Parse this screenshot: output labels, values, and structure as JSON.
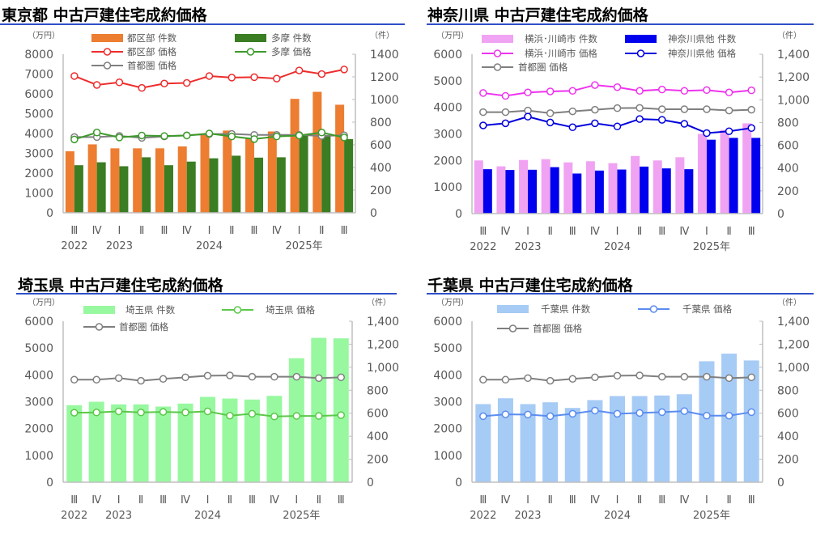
{
  "categories": [
    "Ⅲ",
    "Ⅳ",
    "Ⅰ",
    "Ⅱ",
    "Ⅲ",
    "Ⅳ",
    "Ⅰ",
    "Ⅱ",
    "Ⅲ",
    "Ⅳ",
    "Ⅰ",
    "Ⅱ",
    "Ⅲ"
  ],
  "years": [
    {
      "index": 0,
      "label": "2022"
    },
    {
      "index": 2,
      "label": "2023"
    },
    {
      "index": 6,
      "label": "2024"
    },
    {
      "index": 10,
      "label": "2025年"
    }
  ],
  "chart_data": [
    {
      "type": "bar+line",
      "title": "東京都 中古戸建住宅成約価格",
      "ylabel_left": "（万円）",
      "ylabel_right": "（件）",
      "ylim_left": [
        0,
        8000
      ],
      "ylim_right": [
        0,
        1400
      ],
      "yticks_left": [
        "0",
        "1000",
        "2000",
        "3000",
        "4000",
        "5000",
        "6000",
        "7000",
        "8000"
      ],
      "yticks_right": [
        "0",
        "200",
        "400",
        "600",
        "800",
        "1000",
        "1200",
        "1400"
      ],
      "legend": "top",
      "bars": [
        {
          "name": "都区部 件数",
          "color": "#ED7D31",
          "values": [
            543,
            604,
            569,
            569,
            569,
            586,
            691,
            726,
            656,
            718,
            1006,
            1068,
            954
          ]
        },
        {
          "name": "多摩 件数",
          "color": "#3A7D22",
          "values": [
            420,
            446,
            411,
            490,
            420,
            452,
            481,
            504,
            487,
            490,
            683,
            683,
            651
          ]
        }
      ],
      "lines": [
        {
          "name": "都区部 価格",
          "color": "#EE2C2C",
          "values": [
            6900,
            6450,
            6580,
            6300,
            6520,
            6550,
            6900,
            6820,
            6840,
            6770,
            7180,
            7000,
            7230
          ]
        },
        {
          "name": "多摩 価格",
          "color": "#3C9A2A",
          "values": [
            3700,
            4050,
            3800,
            3900,
            3870,
            3900,
            4000,
            3850,
            3720,
            3850,
            3900,
            4050,
            3800
          ]
        },
        {
          "name": "首都圏 価格",
          "color": "#7F7F7F",
          "values": [
            3820,
            3820,
            3880,
            3780,
            3850,
            3910,
            3970,
            3980,
            3930,
            3930,
            3930,
            3880,
            3910
          ]
        }
      ]
    },
    {
      "type": "bar+line",
      "title": "神奈川県 中古戸建住宅成約価格",
      "ylabel_left": "（万円）",
      "ylabel_right": "（件）",
      "ylim_left": [
        0,
        6000
      ],
      "ylim_right": [
        0,
        1400
      ],
      "yticks_left": [
        "0",
        "1000",
        "2000",
        "3000",
        "4000",
        "5000",
        "6000"
      ],
      "yticks_right": [
        "0",
        "200",
        "400",
        "600",
        "800",
        "1,000",
        "1,200",
        "1,400"
      ],
      "legend": "top",
      "bars": [
        {
          "name": "横浜･川崎市 件数",
          "color": "#F0A3F2",
          "values": [
            467,
            415,
            471,
            478,
            450,
            460,
            443,
            506,
            467,
            495,
            700,
            735,
            793
          ]
        },
        {
          "name": "神奈川県他 件数",
          "color": "#0000EE",
          "values": [
            390,
            383,
            385,
            408,
            352,
            378,
            387,
            413,
            397,
            390,
            649,
            665,
            665
          ]
        }
      ],
      "lines": [
        {
          "name": "横浜･川崎市 価格",
          "color": "#EE33EE",
          "values": [
            4540,
            4430,
            4560,
            4600,
            4620,
            4840,
            4760,
            4620,
            4670,
            4620,
            4650,
            4560,
            4640
          ]
        },
        {
          "name": "神奈川県他 価格",
          "color": "#0000DD",
          "values": [
            3320,
            3400,
            3650,
            3430,
            3250,
            3400,
            3280,
            3560,
            3530,
            3380,
            3030,
            3100,
            3220
          ]
        },
        {
          "name": "首都圏 価格",
          "color": "#7F7F7F",
          "values": [
            3820,
            3820,
            3880,
            3780,
            3850,
            3910,
            3970,
            3980,
            3930,
            3930,
            3930,
            3880,
            3910
          ]
        }
      ]
    },
    {
      "type": "bar+line",
      "title": "埼玉県 中古戸建住宅成約価格",
      "ylabel_left": "（万円）",
      "ylabel_right": "（件）",
      "ylim_left": [
        0,
        6000
      ],
      "ylim_right": [
        0,
        1400
      ],
      "yticks_left": [
        "0",
        "1000",
        "2000",
        "3000",
        "4000",
        "5000",
        "6000"
      ],
      "yticks_right": [
        "0",
        "200",
        "400",
        "600",
        "800",
        "1,000",
        "1,200",
        "1,400"
      ],
      "legend": "top",
      "bars": [
        {
          "name": "埼玉県 件数",
          "color": "#98F8A0",
          "values": [
            670,
            700,
            677,
            677,
            658,
            684,
            742,
            728,
            719,
            751,
            1078,
            1255,
            1251
          ]
        }
      ],
      "lines": [
        {
          "name": "埼玉県 価格",
          "color": "#5CC84A",
          "values": [
            2590,
            2600,
            2640,
            2600,
            2620,
            2600,
            2640,
            2480,
            2550,
            2450,
            2470,
            2470,
            2500
          ]
        },
        {
          "name": "首都圏 価格",
          "color": "#7F7F7F",
          "values": [
            3820,
            3820,
            3880,
            3780,
            3850,
            3910,
            3970,
            3980,
            3930,
            3930,
            3930,
            3880,
            3910
          ]
        }
      ]
    },
    {
      "type": "bar+line",
      "title": "千葉県 中古戸建住宅成約価格",
      "ylabel_left": "（万円）",
      "ylabel_right": "（件）",
      "ylim_left": [
        0,
        6000
      ],
      "ylim_right": [
        0,
        1400
      ],
      "yticks_left": [
        "0",
        "1000",
        "2000",
        "3000",
        "4000",
        "5000",
        "6000"
      ],
      "yticks_right": [
        "0",
        "200",
        "400",
        "600",
        "800",
        "1,000",
        "1,200",
        "1,400"
      ],
      "legend": "top",
      "bars": [
        {
          "name": "千葉県 件数",
          "color": "#A6CBF5",
          "values": [
            679,
            730,
            679,
            695,
            646,
            714,
            749,
            749,
            754,
            765,
            1052,
            1118,
            1059
          ]
        }
      ],
      "lines": [
        {
          "name": "千葉県 価格",
          "color": "#5B8CF0",
          "values": [
            2460,
            2530,
            2520,
            2460,
            2550,
            2670,
            2550,
            2580,
            2610,
            2650,
            2480,
            2480,
            2610
          ]
        },
        {
          "name": "首都圏 価格",
          "color": "#7F7F7F",
          "values": [
            3820,
            3820,
            3880,
            3780,
            3850,
            3910,
            3970,
            3980,
            3930,
            3930,
            3930,
            3880,
            3910
          ]
        }
      ]
    }
  ]
}
